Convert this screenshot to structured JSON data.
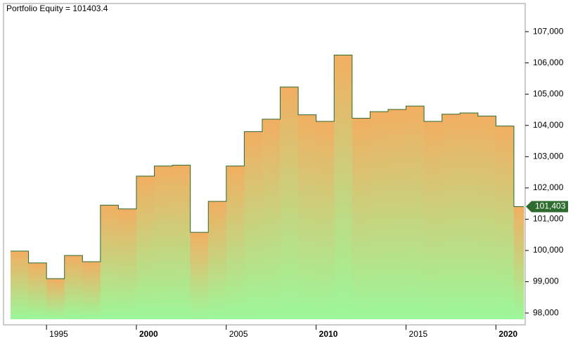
{
  "chart_data": {
    "type": "step-area",
    "title": "Portfolio Equity = 101403.4",
    "x": [
      1993,
      1994,
      1995,
      1996,
      1997,
      1998,
      1999,
      2000,
      2001,
      2002,
      2003,
      2004,
      2005,
      2006,
      2007,
      2008,
      2009,
      2010,
      2011,
      2012,
      2013,
      2014,
      2015,
      2016,
      2017,
      2018,
      2019,
      2020,
      2021
    ],
    "values": [
      99980,
      99600,
      99100,
      99840,
      99640,
      101450,
      101330,
      102380,
      102700,
      102730,
      100580,
      101570,
      102700,
      103800,
      104200,
      105230,
      104340,
      104130,
      106250,
      104230,
      104440,
      104510,
      104620,
      104130,
      104360,
      104400,
      104300,
      103980,
      101403
    ],
    "last_label": "101,403",
    "xlim": [
      1993,
      2021.55
    ],
    "xticks": [
      1995,
      2000,
      2005,
      2010,
      2015,
      2020
    ],
    "ylim": [
      97800,
      107900
    ],
    "yticks": [
      {
        "value": 98000,
        "label": "98,000"
      },
      {
        "value": 99000,
        "label": "99,000"
      },
      {
        "value": 100000,
        "label": "100,000"
      },
      {
        "value": 101000,
        "label": "101,000"
      },
      {
        "value": 102000,
        "label": "102,000"
      },
      {
        "value": 103000,
        "label": "103,000"
      },
      {
        "value": 104000,
        "label": "104,000"
      },
      {
        "value": 105000,
        "label": "105,000"
      },
      {
        "value": 106000,
        "label": "106,000"
      },
      {
        "value": 107000,
        "label": "107,000"
      }
    ],
    "line_color": "#2e6b2e",
    "top_color": "#f2ae62",
    "bottom_color": "#9cf79a"
  }
}
